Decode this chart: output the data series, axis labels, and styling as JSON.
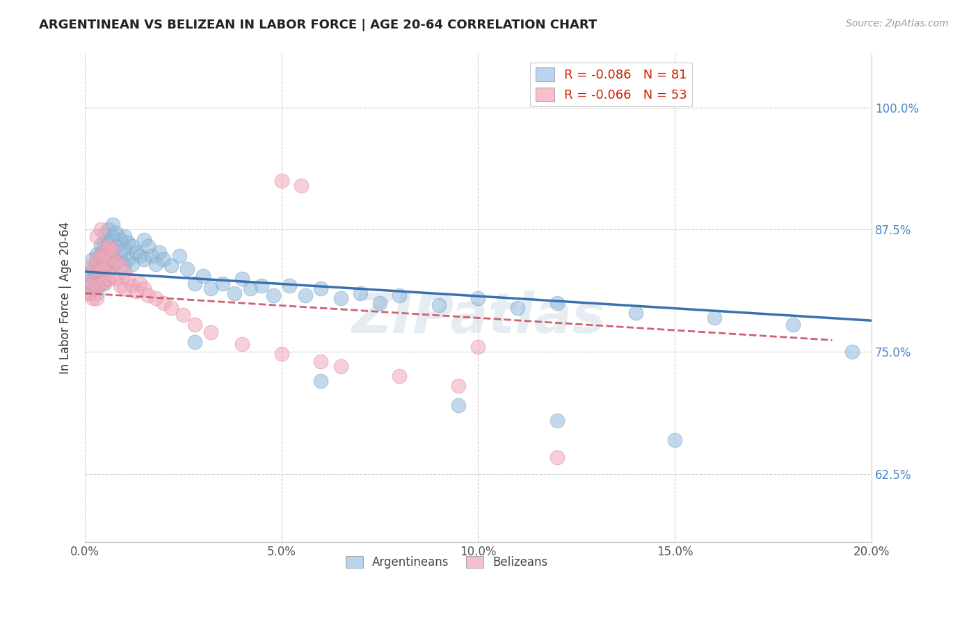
{
  "title": "ARGENTINEAN VS BELIZEAN IN LABOR FORCE | AGE 20-64 CORRELATION CHART",
  "source": "Source: ZipAtlas.com",
  "ylabel": "In Labor Force | Age 20-64",
  "xlim": [
    0.0,
    0.2
  ],
  "ylim": [
    0.555,
    1.055
  ],
  "x_tick_vals": [
    0.0,
    0.05,
    0.1,
    0.15,
    0.2
  ],
  "x_tick_labels": [
    "0.0%",
    "5.0%",
    "10.0%",
    "15.0%",
    "20.0%"
  ],
  "y_tick_vals": [
    0.625,
    0.75,
    0.875,
    1.0
  ],
  "y_tick_labels": [
    "62.5%",
    "75.0%",
    "87.5%",
    "100.0%"
  ],
  "argentinean_R": "-0.086",
  "argentinean_N": "81",
  "belizean_R": "-0.066",
  "belizean_N": "53",
  "blue_scatter_color": "#92b8d9",
  "pink_scatter_color": "#f0a8b8",
  "blue_line_color": "#3a6fb0",
  "pink_line_color": "#d06070",
  "legend_label_blue": "Argentineans",
  "legend_label_pink": "Belizeans",
  "watermark": "ZIPatlas",
  "arg_line_x0": 0.0,
  "arg_line_y0": 0.832,
  "arg_line_x1": 0.2,
  "arg_line_y1": 0.782,
  "bel_line_x0": 0.0,
  "bel_line_y0": 0.81,
  "bel_line_x1": 0.19,
  "bel_line_y1": 0.762,
  "argentinean_x": [
    0.001,
    0.001,
    0.001,
    0.002,
    0.002,
    0.002,
    0.002,
    0.003,
    0.003,
    0.003,
    0.003,
    0.003,
    0.004,
    0.004,
    0.004,
    0.004,
    0.005,
    0.005,
    0.005,
    0.005,
    0.005,
    0.006,
    0.006,
    0.006,
    0.007,
    0.007,
    0.007,
    0.007,
    0.008,
    0.008,
    0.008,
    0.009,
    0.009,
    0.01,
    0.01,
    0.01,
    0.011,
    0.011,
    0.012,
    0.012,
    0.013,
    0.014,
    0.015,
    0.015,
    0.016,
    0.017,
    0.018,
    0.019,
    0.02,
    0.022,
    0.024,
    0.026,
    0.028,
    0.03,
    0.032,
    0.035,
    0.038,
    0.04,
    0.042,
    0.045,
    0.048,
    0.052,
    0.056,
    0.06,
    0.065,
    0.07,
    0.075,
    0.08,
    0.09,
    0.1,
    0.11,
    0.12,
    0.14,
    0.16,
    0.18,
    0.028,
    0.06,
    0.095,
    0.12,
    0.15,
    0.195
  ],
  "argentinean_y": [
    0.83,
    0.82,
    0.81,
    0.845,
    0.835,
    0.825,
    0.815,
    0.85,
    0.84,
    0.83,
    0.82,
    0.81,
    0.86,
    0.85,
    0.835,
    0.82,
    0.87,
    0.86,
    0.845,
    0.835,
    0.82,
    0.875,
    0.862,
    0.845,
    0.88,
    0.868,
    0.855,
    0.84,
    0.872,
    0.858,
    0.842,
    0.865,
    0.848,
    0.868,
    0.855,
    0.84,
    0.862,
    0.845,
    0.858,
    0.84,
    0.852,
    0.848,
    0.865,
    0.845,
    0.858,
    0.848,
    0.84,
    0.852,
    0.845,
    0.838,
    0.848,
    0.835,
    0.82,
    0.828,
    0.815,
    0.82,
    0.81,
    0.825,
    0.815,
    0.818,
    0.808,
    0.818,
    0.808,
    0.815,
    0.805,
    0.81,
    0.8,
    0.808,
    0.798,
    0.805,
    0.795,
    0.8,
    0.79,
    0.785,
    0.778,
    0.76,
    0.72,
    0.695,
    0.68,
    0.66,
    0.75
  ],
  "belizean_x": [
    0.001,
    0.001,
    0.002,
    0.002,
    0.002,
    0.003,
    0.003,
    0.003,
    0.003,
    0.004,
    0.004,
    0.004,
    0.005,
    0.005,
    0.005,
    0.006,
    0.006,
    0.006,
    0.007,
    0.007,
    0.008,
    0.008,
    0.009,
    0.009,
    0.01,
    0.01,
    0.011,
    0.012,
    0.013,
    0.014,
    0.015,
    0.016,
    0.018,
    0.02,
    0.022,
    0.025,
    0.028,
    0.032,
    0.04,
    0.05,
    0.06,
    0.065,
    0.08,
    0.095,
    0.1,
    0.003,
    0.004,
    0.005,
    0.006,
    0.007,
    0.05,
    0.055,
    0.12
  ],
  "belizean_y": [
    0.822,
    0.81,
    0.838,
    0.82,
    0.805,
    0.845,
    0.832,
    0.818,
    0.805,
    0.848,
    0.835,
    0.82,
    0.852,
    0.838,
    0.822,
    0.855,
    0.84,
    0.825,
    0.845,
    0.828,
    0.842,
    0.825,
    0.838,
    0.818,
    0.832,
    0.815,
    0.825,
    0.818,
    0.812,
    0.82,
    0.815,
    0.808,
    0.805,
    0.8,
    0.795,
    0.788,
    0.778,
    0.77,
    0.758,
    0.748,
    0.74,
    0.735,
    0.725,
    0.715,
    0.755,
    0.868,
    0.875,
    0.848,
    0.858,
    0.855,
    0.925,
    0.92,
    0.642
  ]
}
